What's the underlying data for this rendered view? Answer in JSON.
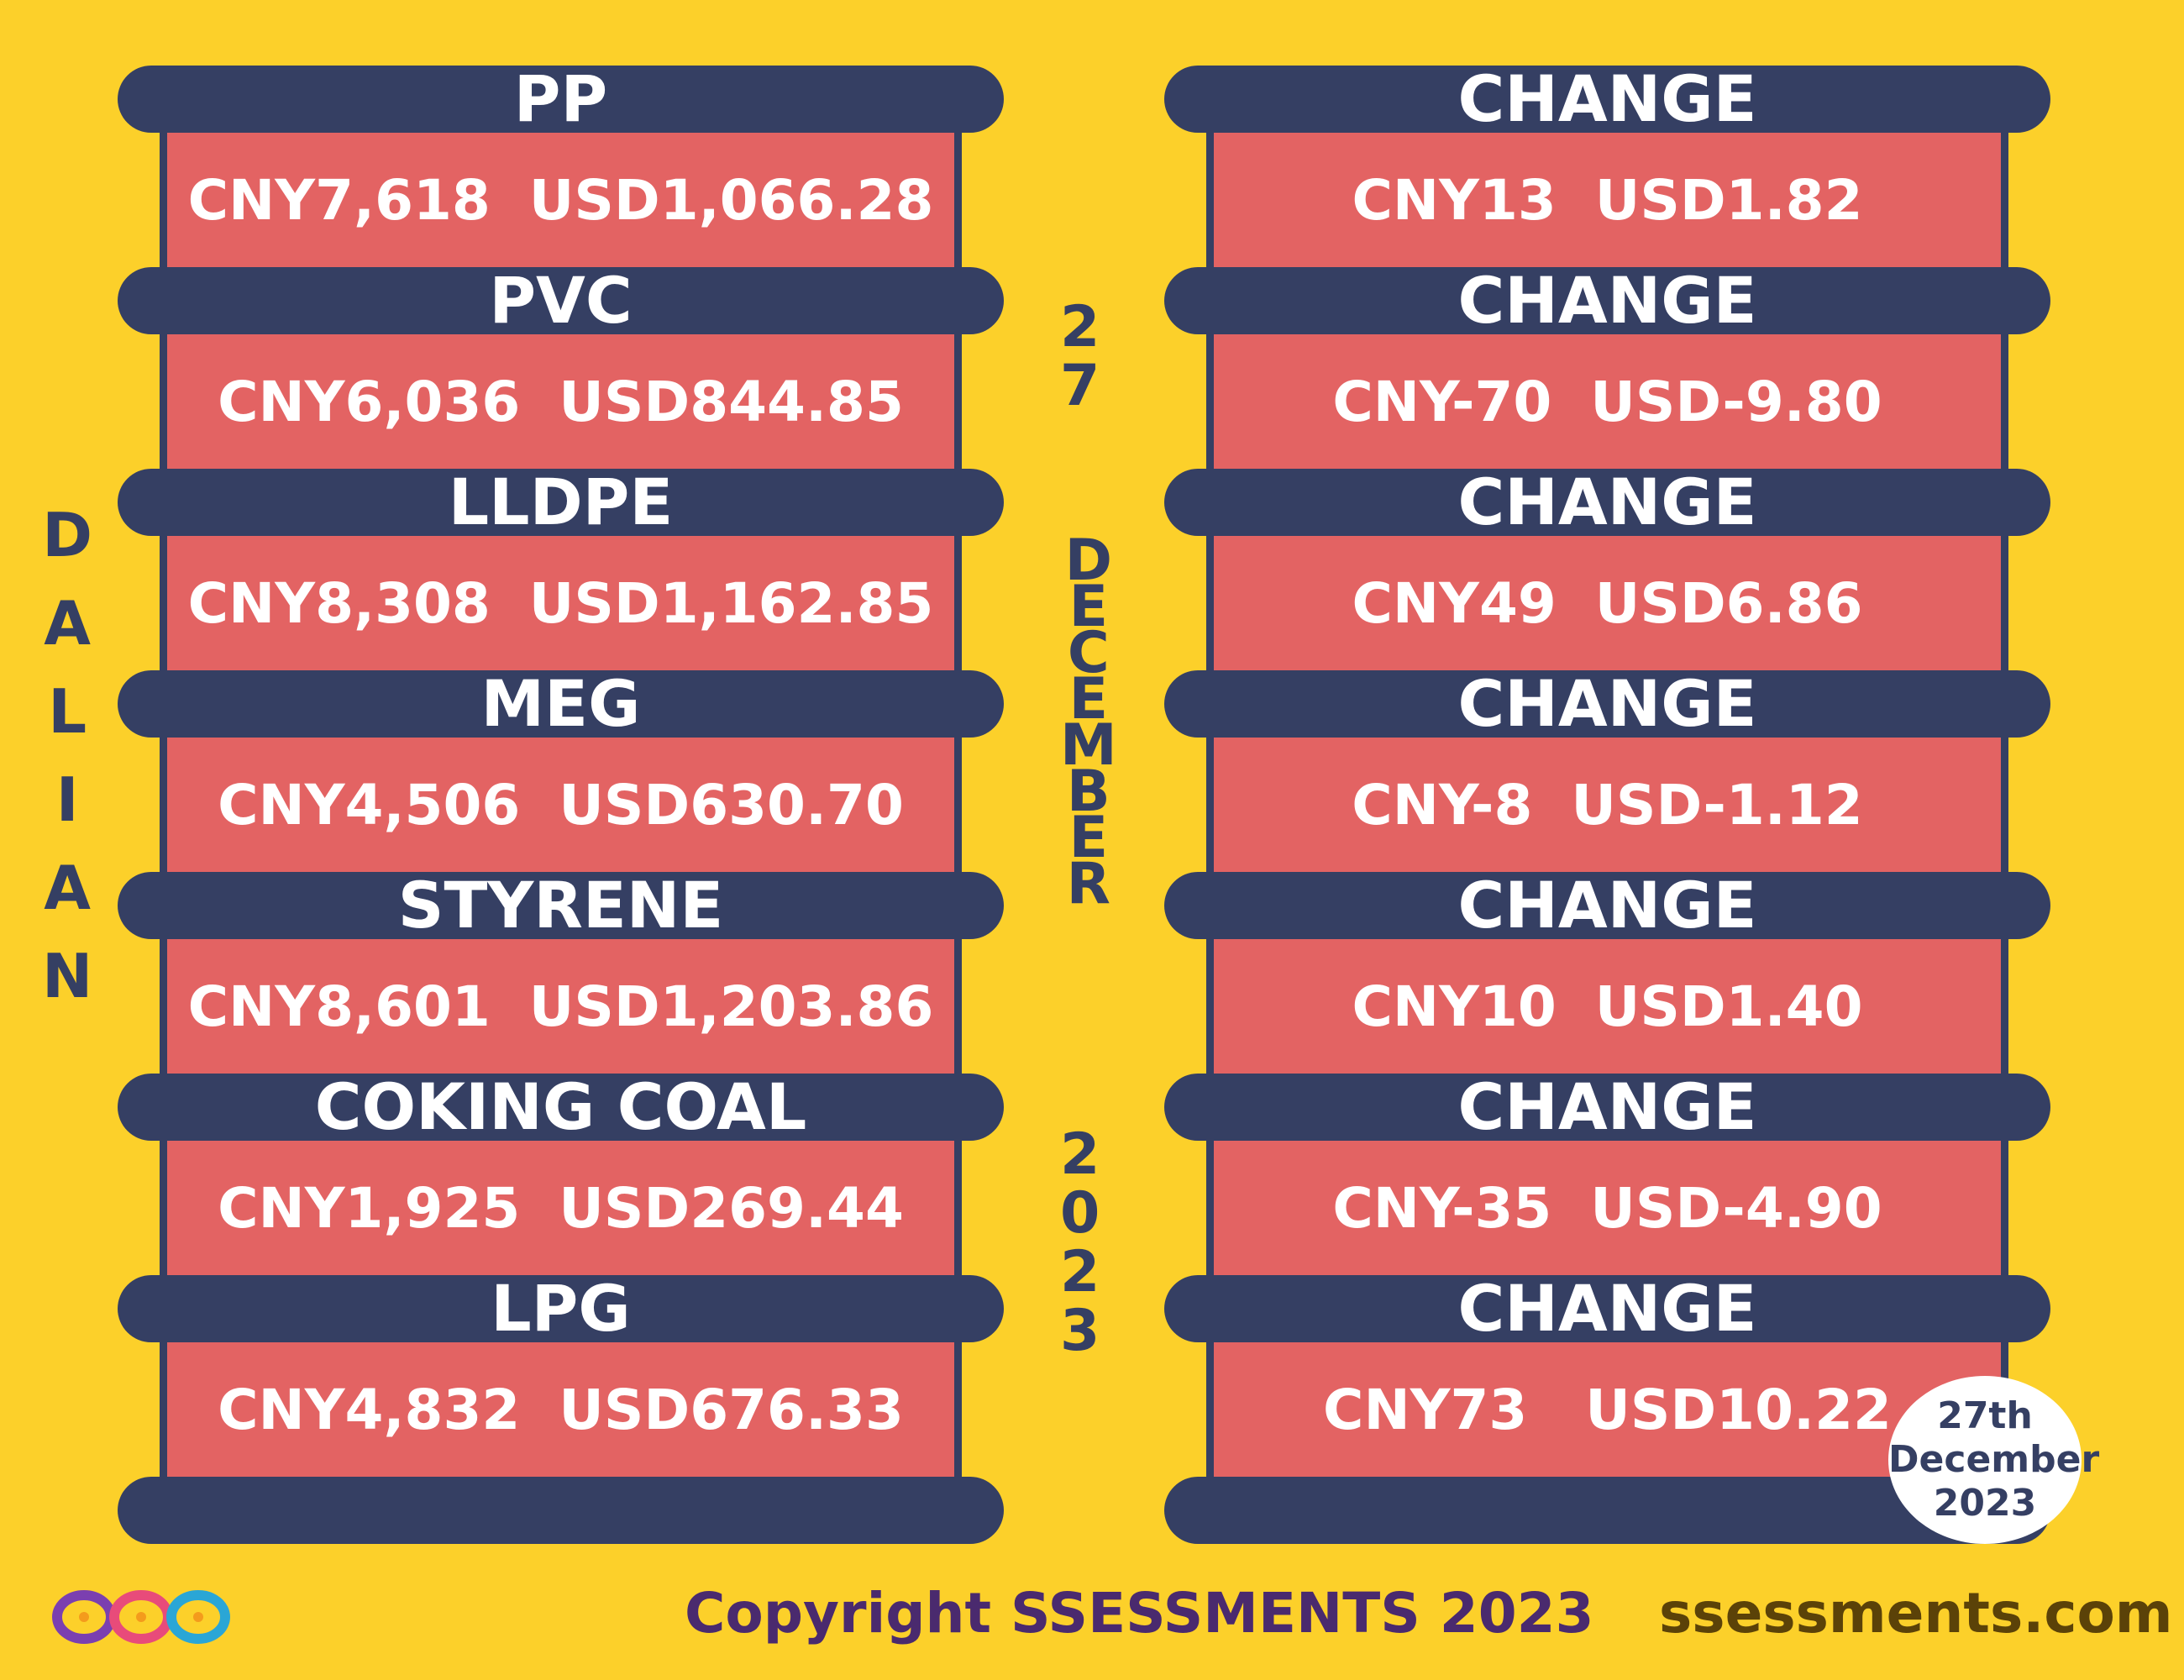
{
  "location": "DALIAN",
  "date_vertical": {
    "day": "27",
    "month": "DECEMBER",
    "year": "2023"
  },
  "products": [
    {
      "name": "PP",
      "price": "CNY7,618  USD1,066.28",
      "change_label": "CHANGE",
      "change": "CNY13  USD1.82"
    },
    {
      "name": "PVC",
      "price": "CNY6,036  USD844.85",
      "change_label": "CHANGE",
      "change": "CNY-70  USD-9.80"
    },
    {
      "name": "LLDPE",
      "price": "CNY8,308  USD1,162.85",
      "change_label": "CHANGE",
      "change": "CNY49  USD6.86"
    },
    {
      "name": "MEG",
      "price": "CNY4,506  USD630.70",
      "change_label": "CHANGE",
      "change": "CNY-8  USD-1.12"
    },
    {
      "name": "STYRENE",
      "price": "CNY8,601  USD1,203.86",
      "change_label": "CHANGE",
      "change": "CNY10  USD1.40"
    },
    {
      "name": "COKING COAL",
      "price": "CNY1,925  USD269.44",
      "change_label": "CHANGE",
      "change": "CNY-35  USD-4.90"
    },
    {
      "name": "LPG",
      "price": "CNY4,832  USD676.33",
      "change_label": "CHANGE",
      "change": "CNY73   USD10.22"
    }
  ],
  "stamp": {
    "line1": "27th",
    "line2": "December",
    "line3": "2023"
  },
  "footer": {
    "copyright": "Copyright SSESSMENTS 2023",
    "website": "ssessments.com"
  },
  "colors": {
    "background": "#fcd02a",
    "header_bar": "#353f63",
    "value_box": "#e36363"
  }
}
